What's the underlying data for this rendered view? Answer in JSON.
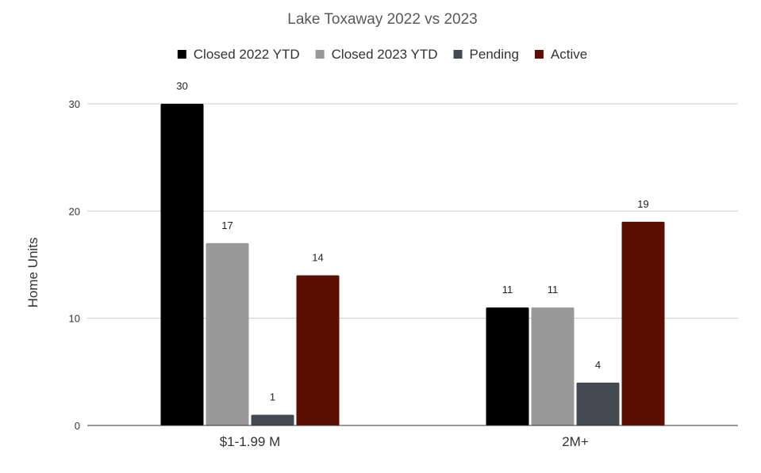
{
  "chart_data": {
    "type": "bar",
    "title": "Lake Toxaway 2022 vs 2023",
    "xlabel": "",
    "ylabel": "Home Units",
    "ylim": [
      0,
      30
    ],
    "yticks": [
      0,
      10,
      20,
      30
    ],
    "grid": true,
    "legend_position": "top",
    "categories": [
      "$1-1.99 M",
      "2M+"
    ],
    "series": [
      {
        "name": "Closed  2022 YTD",
        "color": "#000000",
        "values": [
          30,
          11
        ]
      },
      {
        "name": "Closed  2023 YTD",
        "color": "#999999",
        "values": [
          17,
          11
        ]
      },
      {
        "name": "Pending",
        "color": "#434a52",
        "values": [
          1,
          4
        ]
      },
      {
        "name": "Active",
        "color": "#5b0f00",
        "values": [
          14,
          19
        ]
      }
    ]
  }
}
